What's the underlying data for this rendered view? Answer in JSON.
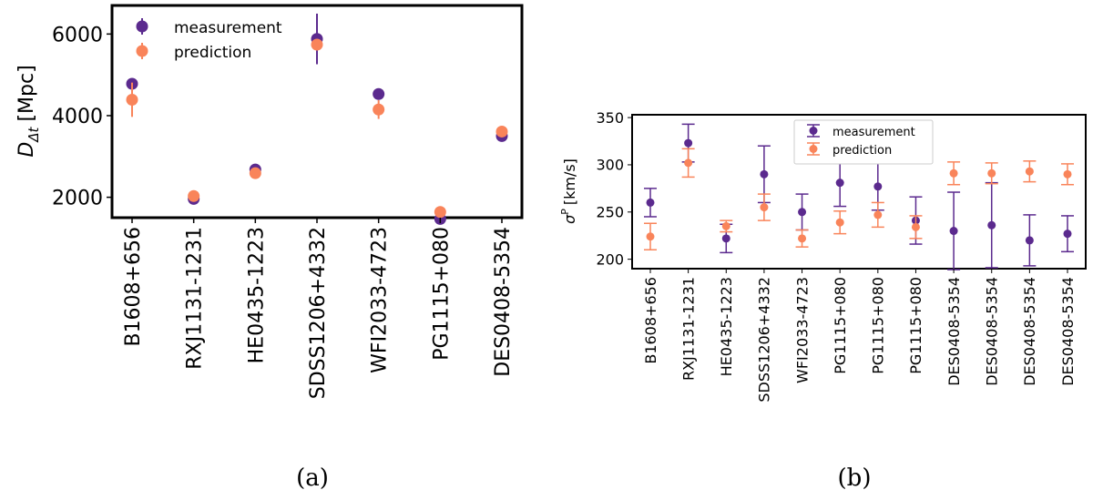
{
  "colors": {
    "measurement": "#5b2a8e",
    "prediction": "#f9845a"
  },
  "chart_data": [
    {
      "type": "scatter",
      "panel_label": "(a)",
      "ylabel_main": "D",
      "ylabel_sub": "Δt",
      "ylabel_unit": "[Mpc]",
      "ylim": [
        1500,
        6700
      ],
      "yticks": [
        2000,
        4000,
        6000
      ],
      "categories": [
        "B1608+656",
        "RXJ1131-1231",
        "HE0435-1223",
        "SDSS1206+4332",
        "WFI2033-4723",
        "PG1115+080",
        "DES0408-5354"
      ],
      "legend_position": "top-left",
      "series": [
        {
          "name": "measurement",
          "values": [
            4780,
            1960,
            2680,
            5880,
            4530,
            1470,
            3500
          ],
          "err": [
            80,
            80,
            80,
            620,
            80,
            60,
            80
          ]
        },
        {
          "name": "prediction",
          "values": [
            4390,
            2030,
            2590,
            5740,
            4150,
            1640,
            3610
          ],
          "err": [
            420,
            60,
            70,
            100,
            230,
            80,
            100
          ]
        }
      ]
    },
    {
      "type": "scatter",
      "panel_label": "(b)",
      "ylabel_main": "σ",
      "ylabel_sup": "P",
      "ylabel_unit": "[km/s]",
      "ylim": [
        190,
        353
      ],
      "yticks": [
        200,
        250,
        300,
        350
      ],
      "categories": [
        "B1608+656",
        "RXJ1131-1231",
        "HE0435-1223",
        "SDSS1206+4332",
        "WFI2033-4723",
        "PG1115+080",
        "PG1115+080",
        "PG1115+080",
        "DES0408-5354",
        "DES0408-5354",
        "DES0408-5354",
        "DES0408-5354"
      ],
      "legend_position": "top-center",
      "series": [
        {
          "name": "measurement",
          "values": [
            260,
            323,
            222,
            290,
            250,
            281,
            277,
            241,
            230,
            236,
            220,
            227
          ],
          "err": [
            15,
            20,
            15,
            30,
            19,
            25,
            25,
            25,
            41,
            45,
            27,
            19
          ]
        },
        {
          "name": "prediction",
          "values": [
            224,
            302,
            235,
            255,
            222,
            239,
            247,
            234,
            291,
            291,
            293,
            290
          ],
          "err": [
            14,
            15,
            6,
            14,
            9,
            12,
            13,
            12,
            12,
            11,
            11,
            11
          ]
        }
      ]
    }
  ]
}
